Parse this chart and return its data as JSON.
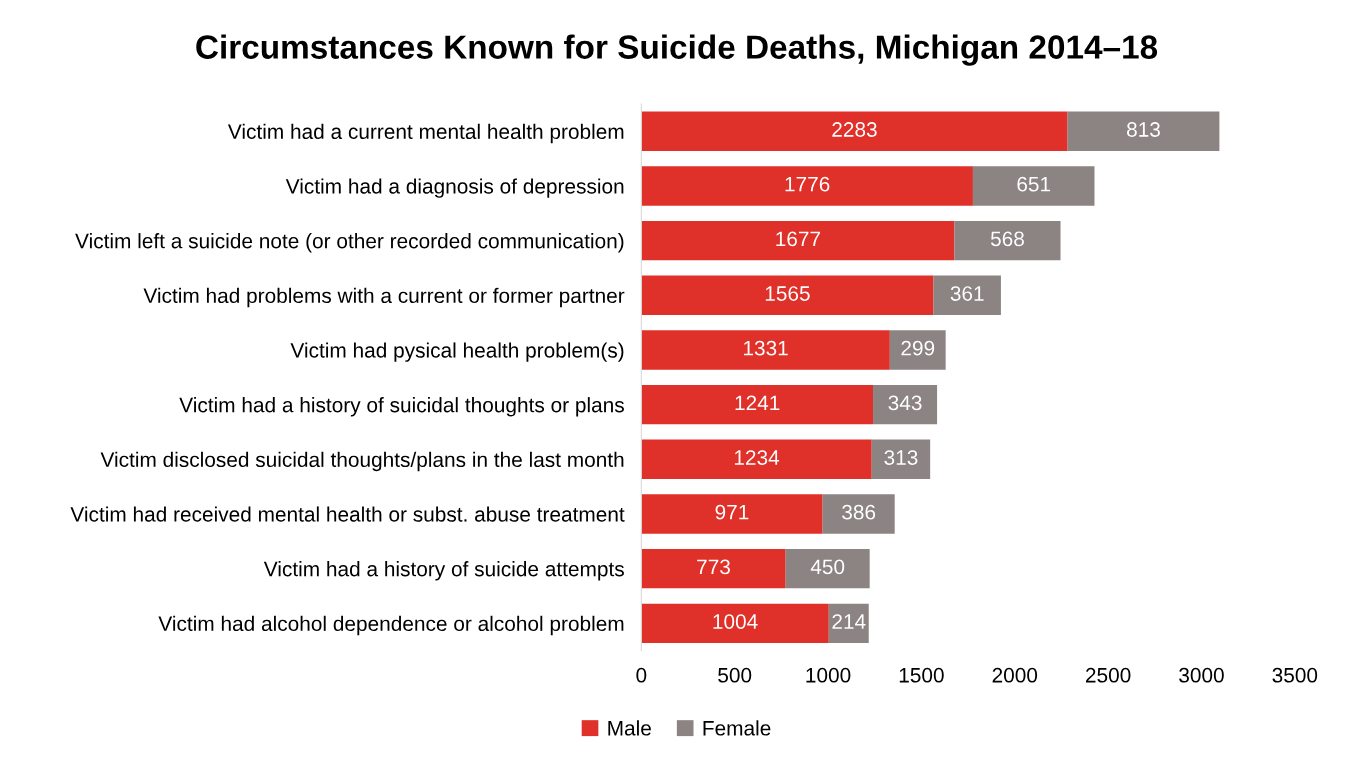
{
  "chart_data": {
    "type": "bar",
    "title": "Circumstances Known for Suicide Deaths, Michigan 2014–18",
    "orientation": "horizontal",
    "stacked": true,
    "categories": [
      "Victim had a current mental health problem",
      "Victim had a diagnosis of depression",
      "Victim left a suicide note (or other recorded communication)",
      "Victim had problems with a current or former partner",
      "Victim had pysical health problem(s)",
      "Victim had a history of suicidal thoughts or plans",
      "Victim disclosed suicidal thoughts/plans in the last month",
      "Victim had received mental health or subst. abuse treatment",
      "Victim had a history of suicide attempts",
      "Victim had alcohol dependence or alcohol problem"
    ],
    "series": [
      {
        "name": "Male",
        "color": "#e0302a",
        "values": [
          2283,
          1776,
          1677,
          1565,
          1331,
          1241,
          1234,
          971,
          773,
          1004
        ]
      },
      {
        "name": "Female",
        "color": "#8c8383",
        "values": [
          813,
          651,
          568,
          361,
          299,
          343,
          313,
          386,
          450,
          214
        ]
      }
    ],
    "xlim": [
      0,
      3500
    ],
    "xticks": [
      0,
      500,
      1000,
      1500,
      2000,
      2500,
      3000,
      3500
    ],
    "data_labels": true,
    "grid": false,
    "legend": "bottom"
  }
}
